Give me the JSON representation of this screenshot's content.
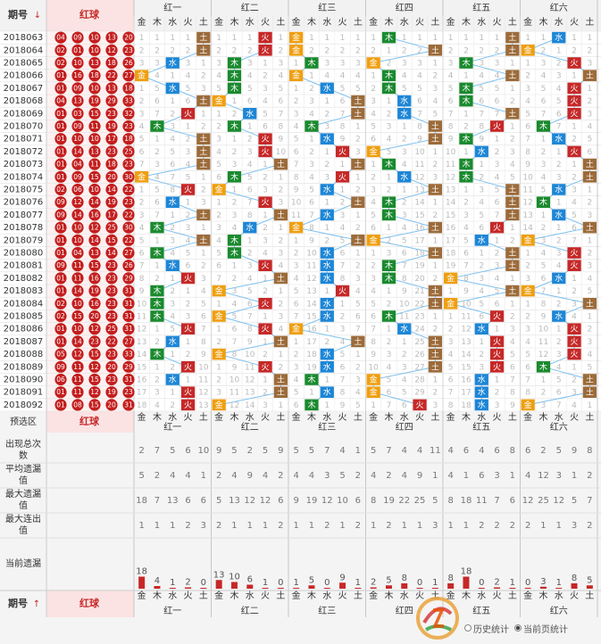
{
  "header": {
    "issue_label": "期号",
    "sort_down": "↓",
    "sort_up": "↑",
    "red_ball_label": "红球",
    "preselect_label": "预选区",
    "groups": [
      "红一",
      "红二",
      "红三",
      "红四",
      "红五",
      "红六"
    ],
    "elements": [
      "金",
      "木",
      "水",
      "火",
      "土"
    ]
  },
  "colors": {
    "金": "#ef9f10",
    "木": "#1a8a2e",
    "水": "#1d86d6",
    "火": "#c62828",
    "土": "#9c6b3a",
    "line": "#7ec1ee",
    "header_bg": "#f2f2f2",
    "red_cell": "#fbe3e3",
    "ball": "#c41e1e"
  },
  "chart_data": {
    "type": "table",
    "rows": [
      {
        "issue": "2018063",
        "balls": "0409101320",
        "el": [
          "土",
          "火",
          "金",
          "木",
          "土",
          "水"
        ]
      },
      {
        "issue": "2018064",
        "balls": "0201101223",
        "el": [
          "土",
          "火",
          "金",
          "土",
          "土",
          "金"
        ]
      },
      {
        "issue": "2018065",
        "balls": "0210131826",
        "el": [
          "水",
          "木",
          "木",
          "金",
          "木",
          "火"
        ]
      },
      {
        "issue": "2018066",
        "balls": "0116182227",
        "el": [
          "金",
          "木",
          "金",
          "木",
          "土",
          "土"
        ]
      },
      {
        "issue": "2018067",
        "balls": "0109101318",
        "el": [
          "水",
          "木",
          "水",
          "木",
          "木",
          "火"
        ]
      },
      {
        "issue": "2018068",
        "balls": "0413192933",
        "el": [
          "土",
          "金",
          "土",
          "水",
          "木",
          "火"
        ]
      },
      {
        "issue": "2018069",
        "balls": "0103152332",
        "el": [
          "火",
          "水",
          "土",
          "水",
          "土",
          "火"
        ]
      },
      {
        "issue": "2018070",
        "balls": "0109111923",
        "el": [
          "木",
          "木",
          "木",
          "土",
          "火",
          "木"
        ]
      },
      {
        "issue": "2018071",
        "balls": "0110101718",
        "el": [
          "土",
          "火",
          "水",
          "土",
          "木",
          "水"
        ]
      },
      {
        "issue": "2018072",
        "balls": "0114132325",
        "el": [
          "土",
          "火",
          "火",
          "金",
          "水",
          "火"
        ]
      },
      {
        "issue": "2018073",
        "balls": "0104111823",
        "el": [
          "土",
          "土",
          "土",
          "木",
          "木",
          "土"
        ]
      },
      {
        "issue": "2018074",
        "balls": "0109152030",
        "el": [
          "金",
          "木",
          "火",
          "水",
          "木",
          "土"
        ]
      },
      {
        "issue": "2018075",
        "balls": "0206101422",
        "el": [
          "火",
          "金",
          "水",
          "土",
          "土",
          "水"
        ]
      },
      {
        "issue": "2018076",
        "balls": "0912141923",
        "el": [
          "水",
          "火",
          "土",
          "木",
          "土",
          "木"
        ]
      },
      {
        "issue": "2018077",
        "balls": "0914161722",
        "el": [
          "土",
          "土",
          "水",
          "木",
          "土",
          "水"
        ]
      },
      {
        "issue": "2018078",
        "balls": "0110122530",
        "el": [
          "木",
          "水",
          "金",
          "土",
          "火",
          "土"
        ]
      },
      {
        "issue": "2018079",
        "balls": "0110141522",
        "el": [
          "土",
          "木",
          "土",
          "金",
          "水",
          "金"
        ]
      },
      {
        "issue": "2018080",
        "balls": "0104131427",
        "el": [
          "木",
          "木",
          "水",
          "土",
          "土",
          "火"
        ]
      },
      {
        "issue": "2018081",
        "balls": "0911152326",
        "el": [
          "水",
          "火",
          "水",
          "木",
          "土",
          "火"
        ]
      },
      {
        "issue": "2018082",
        "balls": "0111162329",
        "el": [
          "火",
          "土",
          "水",
          "木",
          "金",
          "水"
        ]
      },
      {
        "issue": "2018083",
        "balls": "0114192331",
        "el": [
          "木",
          "金",
          "火",
          "土",
          "土",
          "金"
        ]
      },
      {
        "issue": "2018084",
        "balls": "0210162331",
        "el": [
          "木",
          "火",
          "水",
          "土",
          "金",
          "土"
        ]
      },
      {
        "issue": "2018085",
        "balls": "0215202331",
        "el": [
          "木",
          "金",
          "水",
          "木",
          "火",
          "水"
        ]
      },
      {
        "issue": "2018086",
        "balls": "0110122531",
        "el": [
          "火",
          "火",
          "金",
          "水",
          "水",
          "火"
        ]
      },
      {
        "issue": "2018087",
        "balls": "0114232227",
        "el": [
          "水",
          "土",
          "土",
          "土",
          "火",
          "火"
        ]
      },
      {
        "issue": "2018088",
        "balls": "0512152333",
        "el": [
          "木",
          "金",
          "水",
          "土",
          "火",
          "火"
        ]
      },
      {
        "issue": "2018089",
        "balls": "0911122029",
        "el": [
          "火",
          "火",
          "水",
          "土",
          "火",
          "木"
        ]
      },
      {
        "issue": "2018090",
        "balls": "0611152331",
        "el": [
          "水",
          "土",
          "木",
          "金",
          "水",
          "土"
        ]
      },
      {
        "issue": "2018091",
        "balls": "0111121923",
        "el": [
          "火",
          "土",
          "水",
          "金",
          "水",
          "土"
        ]
      },
      {
        "issue": "2018092",
        "balls": "0108152031",
        "el": [
          "火",
          "金",
          "木",
          "火",
          "水",
          "金"
        ]
      }
    ],
    "stats": [
      {
        "label": "出现总次数",
        "values": [
          [
            2,
            7,
            5,
            6,
            10
          ],
          [
            9,
            5,
            2,
            5,
            9
          ],
          [
            5,
            5,
            7,
            4,
            1
          ],
          [
            5,
            7,
            4,
            4,
            11
          ],
          [
            4,
            6,
            4,
            6,
            8
          ],
          [
            6,
            2,
            5,
            9,
            8
          ]
        ]
      },
      {
        "label": "平均遗漏值",
        "values": [
          [
            5,
            2,
            4,
            4,
            1
          ],
          [
            2,
            4,
            9,
            4,
            2
          ],
          [
            4,
            4,
            3,
            5,
            2
          ],
          [
            4,
            2,
            4,
            9,
            1
          ],
          [
            4,
            1,
            6,
            3,
            1
          ],
          [
            4,
            12,
            3,
            1,
            2
          ]
        ]
      },
      {
        "label": "最大遗漏值",
        "values": [
          [
            18,
            7,
            13,
            6,
            6
          ],
          [
            5,
            13,
            12,
            12,
            6
          ],
          [
            9,
            19,
            12,
            10,
            6
          ],
          [
            8,
            19,
            22,
            25,
            5
          ],
          [
            8,
            18,
            11,
            7,
            6
          ],
          [
            12,
            25,
            12,
            5,
            7
          ]
        ]
      },
      {
        "label": "最大连出值",
        "values": [
          [
            1,
            1,
            1,
            2,
            3
          ],
          [
            2,
            1,
            1,
            1,
            2
          ],
          [
            1,
            1,
            2,
            1,
            2
          ],
          [
            1,
            2,
            1,
            1,
            3
          ],
          [
            1,
            1,
            2,
            2,
            2
          ],
          [
            2,
            1,
            1,
            3,
            2
          ]
        ]
      }
    ],
    "current_miss": [
      [
        18,
        4,
        1,
        2,
        0
      ],
      [
        13,
        10,
        6,
        1,
        0
      ],
      [
        1,
        5,
        0,
        9,
        1
      ],
      [
        2,
        5,
        8,
        0,
        1
      ],
      [
        8,
        18,
        0,
        2,
        1
      ],
      [
        0,
        3,
        1,
        8,
        5
      ]
    ],
    "current_miss_label": "当前遗漏"
  },
  "footer": {
    "history": "历史统计",
    "current_page": "当前页统计"
  }
}
